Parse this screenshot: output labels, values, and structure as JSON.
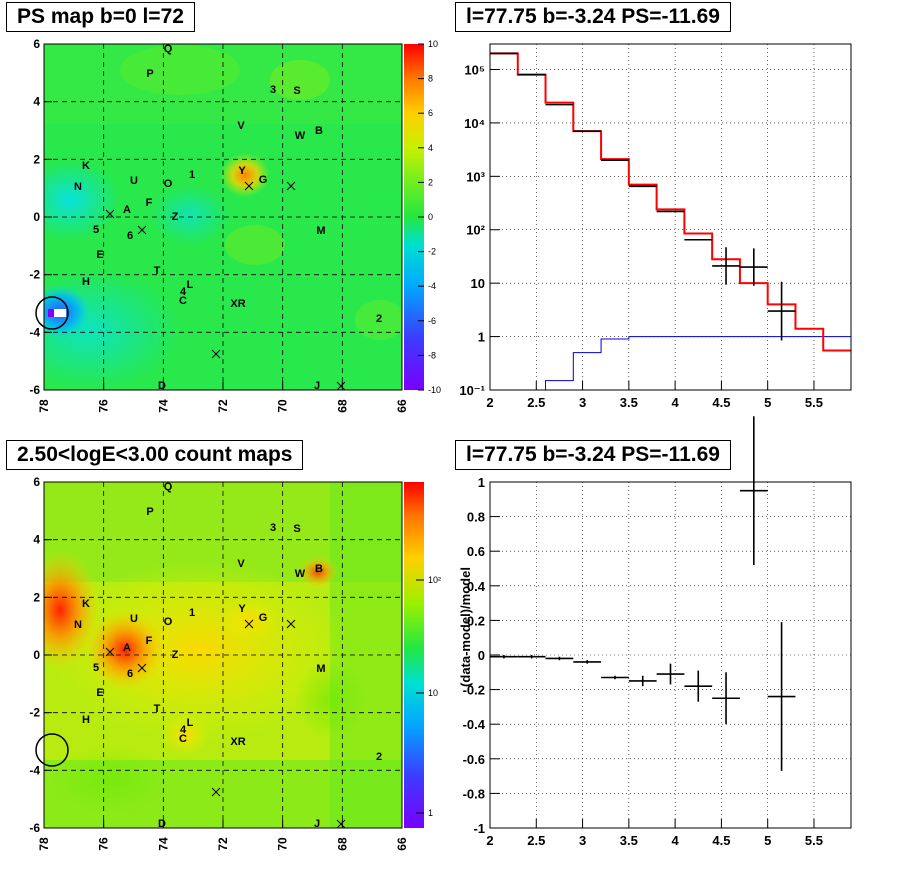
{
  "panels": {
    "ps_map": {
      "title": "PS map b=0 l=72",
      "x_ticks": [
        "78",
        "76",
        "74",
        "72",
        "70",
        "68",
        "66"
      ],
      "y_ticks": [
        "6",
        "4",
        "2",
        "0",
        "-2",
        "-4",
        "-6"
      ],
      "color_ticks": [
        "10",
        "8",
        "6",
        "4",
        "2",
        "0",
        "-2",
        "-4",
        "-6",
        "-8",
        "-10"
      ]
    },
    "spectrum": {
      "title": "l=77.75 b=-3.24 PS=-11.69"
    },
    "count_map": {
      "title": "2.50<logE<3.00 count maps",
      "color_ticks": [
        "10²",
        "10",
        "1"
      ]
    },
    "residual": {
      "title": "l=77.75 b=-3.24 PS=-11.69",
      "ylabel": "(data-model)/model"
    }
  },
  "sources": [
    {
      "label": "Q"
    },
    {
      "label": "P"
    },
    {
      "label": "3"
    },
    {
      "label": "S"
    },
    {
      "label": "V"
    },
    {
      "label": "W"
    },
    {
      "label": "B"
    },
    {
      "label": "K"
    },
    {
      "label": "N"
    },
    {
      "label": "U"
    },
    {
      "label": "O"
    },
    {
      "label": "1"
    },
    {
      "label": "Y"
    },
    {
      "label": "G"
    },
    {
      "label": "F"
    },
    {
      "label": "A"
    },
    {
      "label": "Z"
    },
    {
      "label": "5"
    },
    {
      "label": "6"
    },
    {
      "label": "M"
    },
    {
      "label": "E"
    },
    {
      "label": "T"
    },
    {
      "label": "H"
    },
    {
      "label": "4"
    },
    {
      "label": "L"
    },
    {
      "label": "C"
    },
    {
      "label": "XR"
    },
    {
      "label": "2"
    },
    {
      "label": "D"
    },
    {
      "label": "J"
    }
  ],
  "colors": {
    "model_line": "#ff0000",
    "background_line": "#0000cc",
    "data": "#000000"
  },
  "chart_data": [
    {
      "type": "heatmap",
      "title": "PS map b=0 l=72",
      "xlim": [
        78,
        66
      ],
      "ylim": [
        -6,
        6
      ],
      "zlim": [
        -10,
        10
      ],
      "grid": true
    },
    {
      "type": "line",
      "title": "l=77.75 b=-3.24 PS=-11.69",
      "log_y": true,
      "xlim": [
        2,
        5.9
      ],
      "ylim": [
        0.1,
        300000
      ],
      "x_ticks": [
        2,
        2.5,
        3,
        3.5,
        4,
        4.5,
        5,
        5.5
      ],
      "y_ticks": [
        "10⁻¹",
        "1",
        "10",
        "10²",
        "10³",
        "10⁴",
        "10⁵"
      ],
      "grid": true,
      "series": [
        {
          "edges": [
            2.0,
            2.3,
            2.6,
            2.9,
            3.2,
            3.5,
            3.8,
            4.1,
            4.4,
            4.7,
            5.0,
            5.3,
            5.6,
            5.9
          ],
          "values": [
            200000,
            80000,
            24000,
            7000,
            2100,
            700,
            240,
            85,
            28,
            10,
            4.0,
            1.4,
            0.55
          ]
        },
        {
          "edges": [
            2.0,
            2.3,
            2.6,
            2.9,
            3.2,
            3.5,
            3.8,
            4.1,
            4.4,
            4.7,
            5.0,
            5.3,
            5.6,
            5.9
          ],
          "values": [
            0.04,
            0.1,
            0.15,
            0.5,
            0.9,
            1.0,
            1.0,
            1.0,
            1.0,
            1.0,
            1.0,
            1.0,
            1.0
          ]
        },
        {
          "x": [
            2.15,
            2.45,
            2.75,
            3.05,
            3.35,
            3.65,
            3.95,
            4.25,
            4.55,
            4.85,
            5.15
          ],
          "y": [
            200000,
            80000,
            22000,
            7000,
            2000,
            650,
            220,
            65,
            21,
            20,
            3.0
          ],
          "y_err": [
            0,
            0,
            0,
            0,
            0,
            0,
            0,
            0,
            0.35,
            0.35,
            0.55
          ],
          "x_err": [
            0.15,
            0.15,
            0.15,
            0.15,
            0.15,
            0.15,
            0.15,
            0.15,
            0.15,
            0.15,
            0.15
          ]
        }
      ]
    },
    {
      "type": "heatmap",
      "title": "2.50<logE<3.00 count maps",
      "xlim": [
        78,
        66
      ],
      "ylim": [
        -6,
        6
      ],
      "z_log": true,
      "grid": true
    },
    {
      "type": "scatter",
      "title": "l=77.75 b=-3.24 PS=-11.69",
      "ylabel": "(data-model)/model",
      "xlim": [
        2,
        5.9
      ],
      "ylim": [
        -1,
        1
      ],
      "x_ticks": [
        2,
        2.5,
        3,
        3.5,
        4,
        4.5,
        5,
        5.5
      ],
      "y_ticks": [
        -1,
        -0.8,
        -0.6,
        -0.4,
        -0.2,
        0,
        0.2,
        0.4,
        0.6,
        0.8,
        1
      ],
      "grid": true,
      "series": [
        {
          "x": [
            2.15,
            2.45,
            2.75,
            3.05,
            3.35,
            3.65,
            3.95,
            4.25,
            4.55,
            4.85,
            5.15
          ],
          "y": [
            -0.01,
            -0.01,
            -0.02,
            -0.04,
            -0.13,
            -0.15,
            -0.11,
            -0.18,
            -0.25,
            0.95,
            -0.24
          ],
          "y_err": [
            0.01,
            0.01,
            0.01,
            0.01,
            0.01,
            0.03,
            0.06,
            0.09,
            0.15,
            0.43,
            0.43
          ],
          "x_err": [
            0.15,
            0.15,
            0.15,
            0.15,
            0.15,
            0.15,
            0.15,
            0.15,
            0.15,
            0.15,
            0.15
          ]
        }
      ]
    }
  ]
}
